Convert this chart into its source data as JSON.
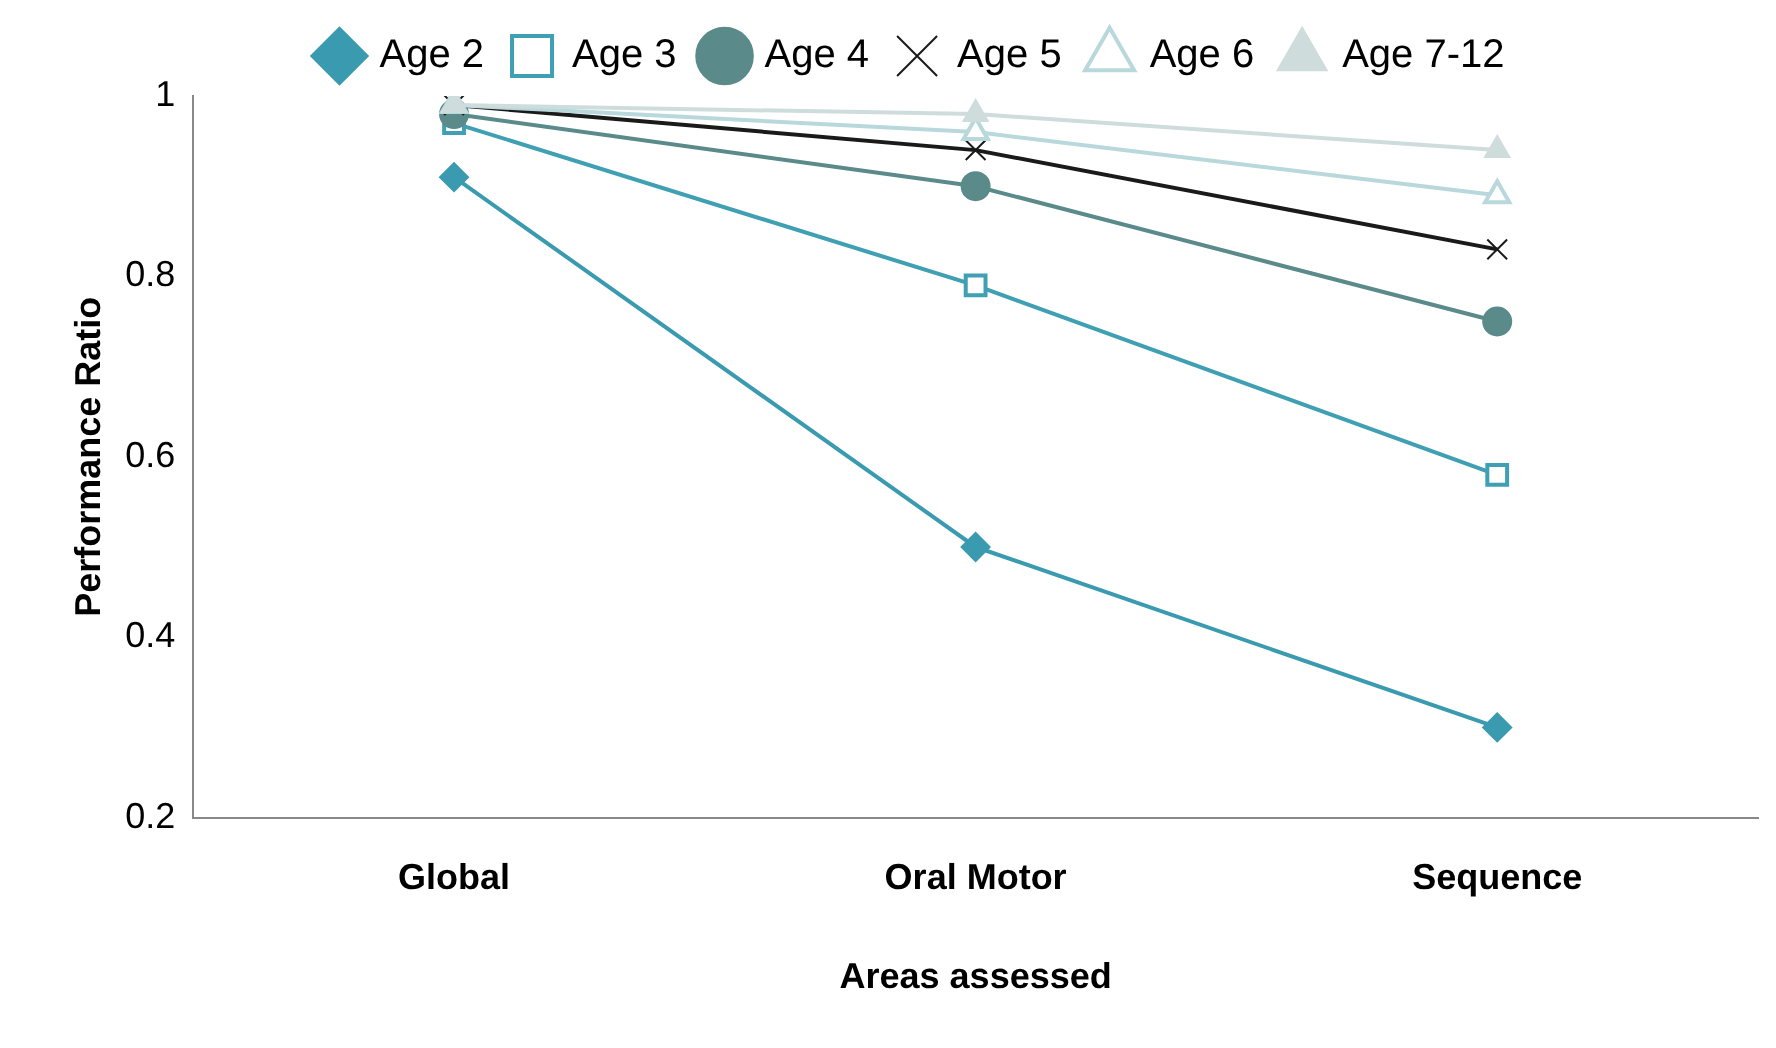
{
  "chart_data": {
    "type": "line",
    "xlabel": "Areas assessed",
    "ylabel": "Performance Ratio",
    "categories": [
      "Global",
      "Oral Motor",
      "Sequence"
    ],
    "ylim": [
      0.2,
      1
    ],
    "yticks": [
      0.2,
      0.4,
      0.6,
      0.8,
      1
    ],
    "grid": false,
    "legend": "top",
    "series": [
      {
        "name": "Age 2",
        "color": "#3a9ab0",
        "marker": "diamond",
        "values": [
          0.91,
          0.5,
          0.3
        ]
      },
      {
        "name": "Age 3",
        "color": "#3f9fb3",
        "marker": "square",
        "values": [
          0.97,
          0.79,
          0.58
        ]
      },
      {
        "name": "Age 4",
        "color": "#5a8a8a",
        "marker": "circle",
        "values": [
          0.98,
          0.9,
          0.75
        ]
      },
      {
        "name": "Age 5",
        "color": "#1a1a1a",
        "marker": "cross",
        "values": [
          0.99,
          0.94,
          0.83
        ]
      },
      {
        "name": "Age 6",
        "color": "#b8d8dc",
        "marker": "triangle",
        "values": [
          0.99,
          0.96,
          0.89
        ]
      },
      {
        "name": "Age 7-12",
        "color": "#cfdcdc",
        "marker": "triangle",
        "values": [
          0.99,
          0.98,
          0.94
        ]
      }
    ]
  }
}
